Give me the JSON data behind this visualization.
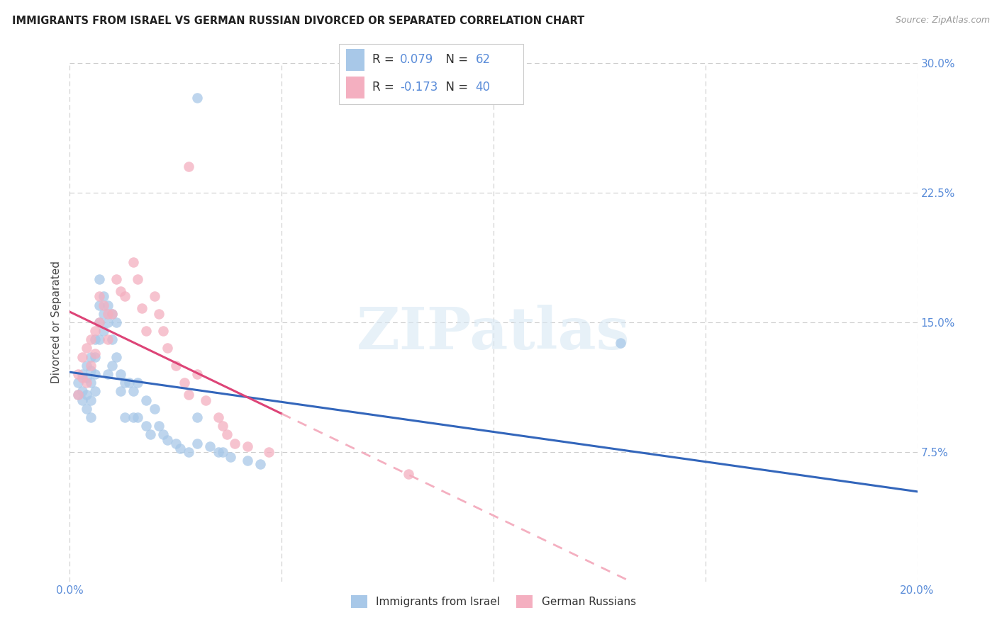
{
  "title": "IMMIGRANTS FROM ISRAEL VS GERMAN RUSSIAN DIVORCED OR SEPARATED CORRELATION CHART",
  "source": "Source: ZipAtlas.com",
  "ylabel": "Divorced or Separated",
  "legend_label1": "Immigrants from Israel",
  "legend_label2": "German Russians",
  "r1": 0.079,
  "n1": 62,
  "r2": -0.173,
  "n2": 40,
  "xlim": [
    0.0,
    0.2
  ],
  "ylim": [
    0.0,
    0.3
  ],
  "xticks": [
    0.0,
    0.05,
    0.1,
    0.15,
    0.2
  ],
  "xticklabels": [
    "0.0%",
    "",
    "",
    "",
    "20.0%"
  ],
  "yticks_right": [
    0.075,
    0.15,
    0.225,
    0.3
  ],
  "ytick_right_labels": [
    "7.5%",
    "15.0%",
    "22.5%",
    "30.0%"
  ],
  "color_blue": "#a8c8e8",
  "color_pink": "#f4afc0",
  "color_blue_line": "#3366bb",
  "color_pink_line": "#dd4477",
  "color_pink_dashed": "#f4afc0",
  "watermark_text": "ZIPatlas",
  "blue_points_x": [
    0.002,
    0.002,
    0.003,
    0.003,
    0.003,
    0.004,
    0.004,
    0.004,
    0.004,
    0.005,
    0.005,
    0.005,
    0.005,
    0.005,
    0.006,
    0.006,
    0.006,
    0.006,
    0.007,
    0.007,
    0.007,
    0.007,
    0.008,
    0.008,
    0.008,
    0.009,
    0.009,
    0.009,
    0.01,
    0.01,
    0.01,
    0.011,
    0.011,
    0.012,
    0.012,
    0.013,
    0.013,
    0.014,
    0.015,
    0.015,
    0.016,
    0.016,
    0.018,
    0.018,
    0.019,
    0.02,
    0.021,
    0.022,
    0.023,
    0.025,
    0.026,
    0.028,
    0.03,
    0.03,
    0.033,
    0.035,
    0.036,
    0.038,
    0.042,
    0.045,
    0.13,
    0.03
  ],
  "blue_points_y": [
    0.115,
    0.108,
    0.12,
    0.11,
    0.105,
    0.125,
    0.118,
    0.108,
    0.1,
    0.13,
    0.122,
    0.115,
    0.105,
    0.095,
    0.14,
    0.13,
    0.12,
    0.11,
    0.175,
    0.16,
    0.15,
    0.14,
    0.165,
    0.155,
    0.145,
    0.16,
    0.15,
    0.12,
    0.155,
    0.14,
    0.125,
    0.15,
    0.13,
    0.12,
    0.11,
    0.115,
    0.095,
    0.115,
    0.11,
    0.095,
    0.115,
    0.095,
    0.105,
    0.09,
    0.085,
    0.1,
    0.09,
    0.085,
    0.082,
    0.08,
    0.077,
    0.075,
    0.095,
    0.08,
    0.078,
    0.075,
    0.075,
    0.072,
    0.07,
    0.068,
    0.138,
    0.28
  ],
  "pink_points_x": [
    0.002,
    0.002,
    0.003,
    0.003,
    0.004,
    0.004,
    0.005,
    0.005,
    0.006,
    0.006,
    0.007,
    0.007,
    0.008,
    0.009,
    0.009,
    0.01,
    0.011,
    0.012,
    0.013,
    0.015,
    0.016,
    0.017,
    0.018,
    0.02,
    0.021,
    0.022,
    0.023,
    0.025,
    0.027,
    0.028,
    0.03,
    0.032,
    0.035,
    0.036,
    0.037,
    0.039,
    0.042,
    0.047,
    0.08,
    0.028
  ],
  "pink_points_y": [
    0.12,
    0.108,
    0.13,
    0.118,
    0.135,
    0.115,
    0.14,
    0.125,
    0.145,
    0.132,
    0.165,
    0.15,
    0.16,
    0.155,
    0.14,
    0.155,
    0.175,
    0.168,
    0.165,
    0.185,
    0.175,
    0.158,
    0.145,
    0.165,
    0.155,
    0.145,
    0.135,
    0.125,
    0.115,
    0.108,
    0.12,
    0.105,
    0.095,
    0.09,
    0.085,
    0.08,
    0.078,
    0.075,
    0.062,
    0.24
  ]
}
